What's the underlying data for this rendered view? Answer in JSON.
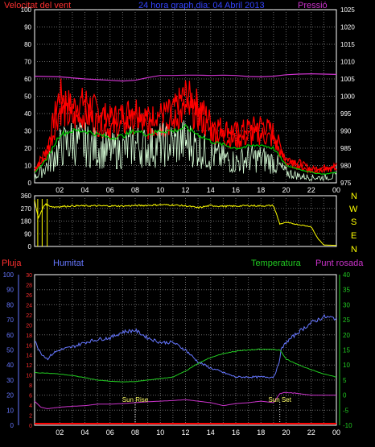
{
  "header": {
    "title": "24 hora graph,dia: 04 Abril 2013",
    "wind_label": "Velocitat del vent",
    "pressure_label": "Pressió"
  },
  "direction_letters": [
    "N",
    "W",
    "S",
    "E",
    "N"
  ],
  "lower_labels": {
    "rain": "Pluja",
    "humidity": "Humitat",
    "temperature": "Temperatura",
    "dewpoint": "Punt rosada",
    "sunrise": "Sun Rise",
    "sunset": "Sun Set"
  },
  "colors": {
    "wind_gust": "#ff0000",
    "wind_avg": "#00cc00",
    "wind_speed": "#d8ffd8",
    "pressure": "#cc33cc",
    "direction": "#ffff00",
    "humidity": "#6677ff",
    "temperature": "#22cc22",
    "dewpoint": "#cc33cc",
    "rain": "#ff0000",
    "grid": "#6a6a6a"
  },
  "chart_data": [
    {
      "type": "line",
      "id": "wind_pressure",
      "title": "24 hora graph,dia: 04 Abril 2013",
      "x_ticks": [
        "02",
        "04",
        "06",
        "08",
        "10",
        "12",
        "14",
        "16",
        "18",
        "20",
        "22",
        "00"
      ],
      "x_range_hours": [
        0,
        24
      ],
      "y_left_label": "Velocitat del vent",
      "y_left_range": [
        0,
        100
      ],
      "y_left_ticks": [
        0,
        10,
        20,
        30,
        40,
        50,
        60,
        70,
        80,
        90,
        100
      ],
      "y_right_label": "Pressió",
      "y_right_range": [
        975,
        1025
      ],
      "y_right_ticks": [
        975,
        980,
        985,
        990,
        995,
        1000,
        1005,
        1010,
        1015,
        1020,
        1025
      ],
      "series": [
        {
          "name": "Pressió",
          "axis": "right",
          "x": [
            0,
            2,
            4,
            6,
            7,
            8,
            9,
            10,
            11,
            12,
            13,
            14,
            15,
            16,
            17,
            18,
            19,
            20,
            21,
            22,
            23,
            24
          ],
          "values": [
            1005.8,
            1005.6,
            1005.0,
            1004.6,
            1004.4,
            1004.6,
            1005.4,
            1006.0,
            1006.0,
            1006.1,
            1006.1,
            1006.0,
            1006.1,
            1006.0,
            1005.7,
            1005.6,
            1005.8,
            1006.2,
            1006.4,
            1006.5,
            1006.4,
            1006.3
          ]
        },
        {
          "name": "Velocitat del vent (ratxa)",
          "axis": "left",
          "x": [
            0,
            1,
            2,
            3,
            4,
            5,
            6,
            7,
            8,
            9,
            10,
            11,
            12,
            13,
            14,
            15,
            16,
            17,
            18,
            19,
            20,
            21,
            22,
            23,
            24
          ],
          "values": [
            8,
            20,
            52,
            44,
            48,
            42,
            38,
            40,
            44,
            38,
            40,
            42,
            52,
            46,
            36,
            32,
            30,
            32,
            34,
            30,
            14,
            12,
            8,
            9,
            10
          ]
        },
        {
          "name": "Velocitat del vent (mitjana)",
          "axis": "left",
          "x": [
            0,
            1,
            2,
            3,
            4,
            5,
            6,
            7,
            8,
            9,
            10,
            11,
            12,
            13,
            14,
            15,
            16,
            17,
            18,
            19,
            20,
            21,
            22,
            23,
            24
          ],
          "values": [
            6,
            14,
            28,
            30,
            30,
            28,
            26,
            27,
            30,
            28,
            30,
            30,
            32,
            28,
            24,
            22,
            20,
            21,
            22,
            20,
            10,
            8,
            6,
            5,
            6
          ]
        },
        {
          "name": "Velocitat del vent",
          "axis": "left",
          "x": [
            0,
            1,
            2,
            3,
            4,
            5,
            6,
            7,
            8,
            9,
            10,
            11,
            12,
            13,
            14,
            15,
            16,
            17,
            18,
            19,
            20,
            21,
            22,
            23,
            24
          ],
          "values": [
            3,
            10,
            20,
            24,
            22,
            20,
            18,
            19,
            22,
            20,
            22,
            22,
            24,
            20,
            16,
            14,
            12,
            14,
            14,
            12,
            6,
            4,
            3,
            3,
            4
          ]
        }
      ]
    },
    {
      "type": "line",
      "id": "wind_direction",
      "x_ticks": [
        "02",
        "04",
        "06",
        "08",
        "10",
        "12",
        "14",
        "16",
        "18",
        "20",
        "22",
        "00"
      ],
      "y_range": [
        0,
        360
      ],
      "y_ticks": [
        0,
        90,
        180,
        270,
        360
      ],
      "series": [
        {
          "name": "Direcció",
          "x": [
            0,
            0.3,
            0.8,
            1.5,
            3,
            5,
            7,
            8,
            9,
            10,
            11,
            12,
            13,
            14,
            15,
            16,
            17,
            18,
            19,
            19.5,
            20,
            21,
            22,
            22.5,
            23,
            24
          ],
          "values": [
            330,
            200,
            300,
            280,
            288,
            288,
            287,
            290,
            292,
            296,
            294,
            288,
            275,
            290,
            285,
            286,
            290,
            288,
            290,
            160,
            170,
            155,
            140,
            60,
            10,
            8
          ]
        }
      ]
    },
    {
      "type": "line",
      "id": "humidity_temp",
      "x_ticks": [
        "02",
        "04",
        "06",
        "08",
        "10",
        "12",
        "14",
        "16",
        "18",
        "20",
        "22",
        "00"
      ],
      "y_axes": {
        "rain": {
          "label": "Pluja",
          "range": [
            0,
            30
          ],
          "ticks": [
            0,
            2,
            4,
            6,
            8,
            10,
            12,
            14,
            16,
            18,
            20,
            22,
            24,
            26,
            28,
            30
          ]
        },
        "humidity": {
          "label": "Humitat",
          "range": [
            0,
            100
          ],
          "ticks": [
            0,
            10,
            20,
            30,
            40,
            50,
            60,
            70,
            80,
            90,
            100
          ]
        },
        "temperature": {
          "label": "Temperatura",
          "range": [
            -10,
            40
          ],
          "ticks": [
            -10,
            -5,
            0,
            5,
            10,
            15,
            20,
            25,
            30,
            35,
            40
          ]
        }
      },
      "annotations": [
        {
          "label": "Sun Rise",
          "x_hour": 8
        },
        {
          "label": "Sun Set",
          "x_hour": 19.5
        }
      ],
      "series": [
        {
          "name": "Humitat",
          "axis": "humidity",
          "x": [
            0,
            0.5,
            1,
            1.5,
            2,
            3,
            4,
            5,
            6,
            7,
            8,
            9,
            10,
            11,
            12,
            13,
            14,
            15,
            16,
            17,
            18,
            19,
            19.4,
            19.6,
            20,
            21,
            22,
            23,
            24
          ],
          "values": [
            56,
            48,
            44,
            48,
            50,
            52,
            55,
            57,
            58,
            62,
            63,
            58,
            55,
            55,
            50,
            42,
            38,
            35,
            32,
            32,
            32,
            32,
            40,
            50,
            55,
            62,
            68,
            72,
            71
          ]
        },
        {
          "name": "Temperatura",
          "axis": "temperature",
          "x": [
            0,
            1,
            2,
            3,
            4,
            5,
            6,
            7,
            8,
            9,
            10,
            11,
            12,
            13,
            14,
            15,
            16,
            17,
            18,
            19,
            19.5,
            20,
            21,
            22,
            23,
            24
          ],
          "values": [
            7.5,
            7.3,
            7.0,
            6.5,
            5.8,
            5.0,
            4.6,
            4.4,
            4.5,
            5.0,
            5.5,
            6.0,
            8.0,
            10.5,
            12.5,
            13.8,
            14.6,
            15.0,
            15.2,
            15.2,
            15.0,
            12.0,
            10.0,
            8.5,
            7.0,
            6.0
          ]
        },
        {
          "name": "Punt rosada",
          "axis": "temperature",
          "x": [
            0,
            0.5,
            1,
            2,
            3,
            4,
            5,
            6,
            7,
            8,
            9,
            10,
            11,
            12,
            13,
            14,
            15,
            16,
            17,
            18,
            19,
            19.5,
            20,
            21,
            22,
            23,
            24
          ],
          "values": [
            -2,
            -4,
            -4.5,
            -4,
            -3.7,
            -3.5,
            -3,
            -3,
            -2.8,
            -2.5,
            -2.2,
            -2,
            -1.8,
            -1.5,
            -2,
            -2.5,
            -3.5,
            -2.8,
            -2.5,
            -2,
            -2.5,
            0.5,
            1,
            0.5,
            0,
            0,
            0
          ]
        },
        {
          "name": "Pluja",
          "axis": "rain",
          "x": [
            0,
            24
          ],
          "values": [
            0,
            0
          ]
        }
      ]
    }
  ]
}
